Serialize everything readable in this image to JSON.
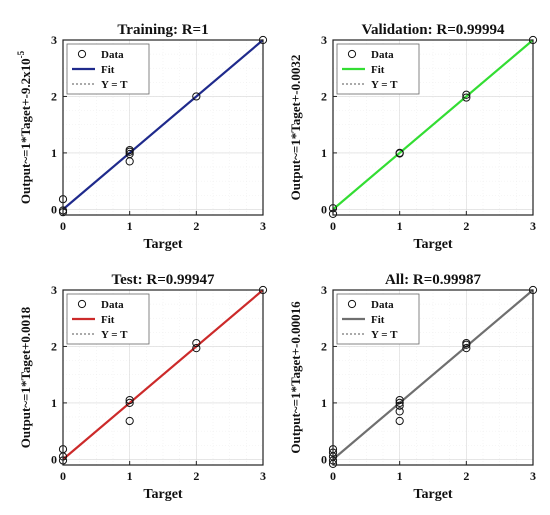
{
  "chart_data": [
    {
      "type": "scatter",
      "title": "Training: R=1",
      "xlabel": "Target",
      "ylabel": "Output~=1*Taget+-9.2x10",
      "ylabel_sup": "-5",
      "xlim": [
        0,
        3
      ],
      "ylim": [
        -0.1,
        3
      ],
      "xticks": [
        "0",
        "1",
        "2",
        "3"
      ],
      "yticks": [
        "0",
        "1",
        "2",
        "3"
      ],
      "grid": true,
      "legend_position": "top-left",
      "fit_color": "#1f2a8c",
      "legend": [
        "Data",
        "Fit",
        "Y = T"
      ],
      "fit": {
        "slope": 1,
        "intercept": 0
      },
      "points": [
        [
          0,
          -0.05
        ],
        [
          0,
          0.18
        ],
        [
          0,
          -0.02
        ],
        [
          1,
          0.85
        ],
        [
          1,
          0.98
        ],
        [
          1,
          1.02
        ],
        [
          1,
          1.05
        ],
        [
          2,
          2.0
        ],
        [
          3,
          3.0
        ]
      ]
    },
    {
      "type": "scatter",
      "title": "Validation: R=0.99994",
      "xlabel": "Target",
      "ylabel": "Output~=1*Taget+-0.0032",
      "ylabel_sup": "",
      "xlim": [
        0,
        3
      ],
      "ylim": [
        -0.1,
        3
      ],
      "xticks": [
        "0",
        "1",
        "2",
        "3"
      ],
      "yticks": [
        "0",
        "1",
        "2",
        "3"
      ],
      "grid": true,
      "legend_position": "top-left",
      "fit_color": "#33dd33",
      "legend": [
        "Data",
        "Fit",
        "Y = T"
      ],
      "fit": {
        "slope": 1,
        "intercept": 0
      },
      "points": [
        [
          0,
          -0.08
        ],
        [
          0,
          0.02
        ],
        [
          1,
          0.99
        ],
        [
          1,
          1.0
        ],
        [
          2,
          1.98
        ],
        [
          2,
          2.03
        ],
        [
          3,
          3.0
        ]
      ]
    },
    {
      "type": "scatter",
      "title": "Test: R=0.99947",
      "xlabel": "Target",
      "ylabel": "Output~=1*Taget+0.0018",
      "ylabel_sup": "",
      "xlim": [
        0,
        3
      ],
      "ylim": [
        -0.1,
        3
      ],
      "xticks": [
        "0",
        "1",
        "2",
        "3"
      ],
      "yticks": [
        "0",
        "1",
        "2",
        "3"
      ],
      "grid": true,
      "legend_position": "top-left",
      "fit_color": "#cc2a2a",
      "legend": [
        "Data",
        "Fit",
        "Y = T"
      ],
      "fit": {
        "slope": 1,
        "intercept": 0
      },
      "points": [
        [
          0,
          0.18
        ],
        [
          0,
          0.05
        ],
        [
          0,
          -0.02
        ],
        [
          1,
          0.68
        ],
        [
          1,
          1.0
        ],
        [
          1,
          1.05
        ],
        [
          2,
          1.97
        ],
        [
          2,
          2.06
        ],
        [
          3,
          3.0
        ]
      ]
    },
    {
      "type": "scatter",
      "title": "All: R=0.99987",
      "xlabel": "Target",
      "ylabel": "Output~=1*Taget+-0.00016",
      "ylabel_sup": "",
      "xlim": [
        0,
        3
      ],
      "ylim": [
        -0.1,
        3
      ],
      "xticks": [
        "0",
        "1",
        "2",
        "3"
      ],
      "yticks": [
        "0",
        "1",
        "2",
        "3"
      ],
      "grid": true,
      "legend_position": "top-left",
      "fit_color": "#6f6f6f",
      "legend": [
        "Data",
        "Fit",
        "Y = T"
      ],
      "fit": {
        "slope": 1,
        "intercept": 0
      },
      "points": [
        [
          0,
          -0.08
        ],
        [
          0,
          -0.02
        ],
        [
          0,
          0.05
        ],
        [
          0,
          0.12
        ],
        [
          0,
          0.18
        ],
        [
          1,
          0.68
        ],
        [
          1,
          0.85
        ],
        [
          1,
          0.95
        ],
        [
          1,
          1.0
        ],
        [
          1,
          1.05
        ],
        [
          2,
          1.97
        ],
        [
          2,
          2.03
        ],
        [
          2,
          2.06
        ],
        [
          3,
          3.0
        ]
      ]
    }
  ]
}
